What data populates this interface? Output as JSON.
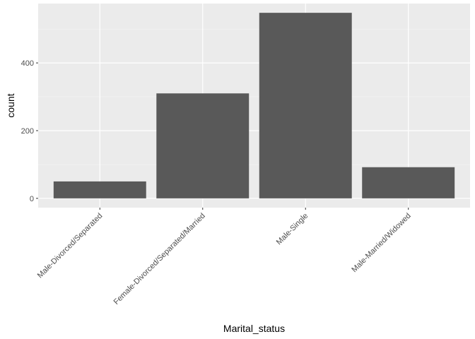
{
  "chart_data": {
    "type": "bar",
    "xlabel": "Marital_status",
    "ylabel": "count",
    "categories": [
      "Male-Divorced/Separated",
      "Female-Divorced/Separated/Married",
      "Male-Single",
      "Male-Married/Widowed"
    ],
    "values": [
      50,
      310,
      548,
      92
    ],
    "ylim": [
      -27.4,
      575.4
    ],
    "yticks": [
      0,
      200,
      400
    ],
    "grid": true,
    "colors": {
      "bar": "#595959",
      "panel": "#ebebeb",
      "grid_major": "#ffffff",
      "grid_minor": "#f5f5f5"
    }
  }
}
